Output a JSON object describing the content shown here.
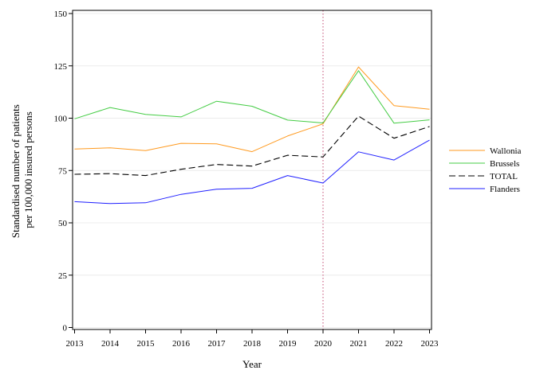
{
  "chart_data": {
    "type": "line",
    "xlabel": "Year",
    "ylabel": [
      "Standardised number of patients",
      "per 100,000 insured persons"
    ],
    "x": [
      2013,
      2014,
      2015,
      2016,
      2017,
      2018,
      2019,
      2020,
      2021,
      2022,
      2023
    ],
    "xlim": [
      2013,
      2023
    ],
    "ylim": [
      0,
      150
    ],
    "yticks": [
      0,
      25,
      50,
      75,
      100,
      125,
      150
    ],
    "reference_line": {
      "x": 2020,
      "style": "dotted",
      "color": "#cc6688"
    },
    "grid": "horizontal",
    "legend_position": "right",
    "series": [
      {
        "name": "Wallonia",
        "color": "#ff9a1f",
        "dash": "solid",
        "values": [
          85.3,
          85.8,
          84.5,
          88.0,
          87.7,
          84.0,
          91.5,
          97.3,
          124.5,
          106.0,
          104.3
        ]
      },
      {
        "name": "Brussels",
        "color": "#44cc44",
        "dash": "solid",
        "values": [
          99.7,
          105.1,
          101.8,
          100.6,
          108.1,
          105.7,
          99.1,
          97.7,
          122.7,
          97.6,
          99.2
        ]
      },
      {
        "name": "TOTAL",
        "color": "#000000",
        "dash": "dashed",
        "values": [
          73.2,
          73.5,
          72.6,
          75.6,
          77.9,
          77.1,
          82.3,
          81.5,
          101.0,
          90.4,
          96.0
        ]
      },
      {
        "name": "Flanders",
        "color": "#1f1fff",
        "dash": "solid",
        "values": [
          60.1,
          59.2,
          59.6,
          63.6,
          66.1,
          66.5,
          72.6,
          69.0,
          83.9,
          80.0,
          89.5
        ]
      }
    ]
  }
}
